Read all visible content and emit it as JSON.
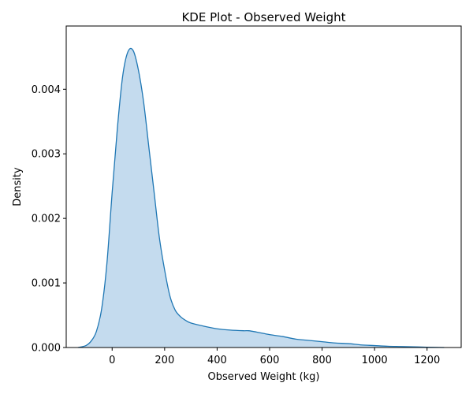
{
  "chart_data": {
    "type": "area",
    "title": "KDE Plot - Observed Weight",
    "xlabel": "Observed Weight (kg)",
    "ylabel": "Density",
    "xlim": [
      -175,
      1330
    ],
    "ylim": [
      0,
      0.00498
    ],
    "xticks": [
      0,
      200,
      400,
      600,
      800,
      1000,
      1200
    ],
    "xtick_labels": [
      "0",
      "200",
      "400",
      "600",
      "800",
      "1000",
      "1200"
    ],
    "yticks": [
      0,
      0.001,
      0.002,
      0.003,
      0.004
    ],
    "ytick_labels": [
      "0.000",
      "0.001",
      "0.002",
      "0.003",
      "0.004"
    ],
    "grid": false,
    "legend": "none",
    "series": [
      {
        "line_color": "#1f77b4",
        "fill_color": "#c4dbee",
        "x": [
          -130,
          -100,
          -80,
          -60,
          -40,
          -20,
          0,
          20,
          40,
          60,
          80,
          100,
          120,
          140,
          160,
          180,
          200,
          220,
          240,
          260,
          280,
          300,
          350,
          400,
          450,
          500,
          520,
          550,
          600,
          650,
          700,
          750,
          800,
          850,
          900,
          950,
          1000,
          1050,
          1100,
          1150,
          1200,
          1265
        ],
        "y": [
          0.0,
          3e-05,
          0.0001,
          0.00025,
          0.0006,
          0.0013,
          0.0024,
          0.0034,
          0.0042,
          0.00458,
          0.0046,
          0.0043,
          0.0038,
          0.0031,
          0.0024,
          0.0017,
          0.0012,
          0.0008,
          0.00058,
          0.00048,
          0.00042,
          0.00038,
          0.00033,
          0.00029,
          0.00027,
          0.00026,
          0.00026,
          0.00024,
          0.0002,
          0.00017,
          0.00013,
          0.00011,
          9e-05,
          7e-05,
          6e-05,
          4e-05,
          3e-05,
          2e-05,
          1.5e-05,
          1e-05,
          5e-06,
          0.0
        ]
      }
    ]
  }
}
